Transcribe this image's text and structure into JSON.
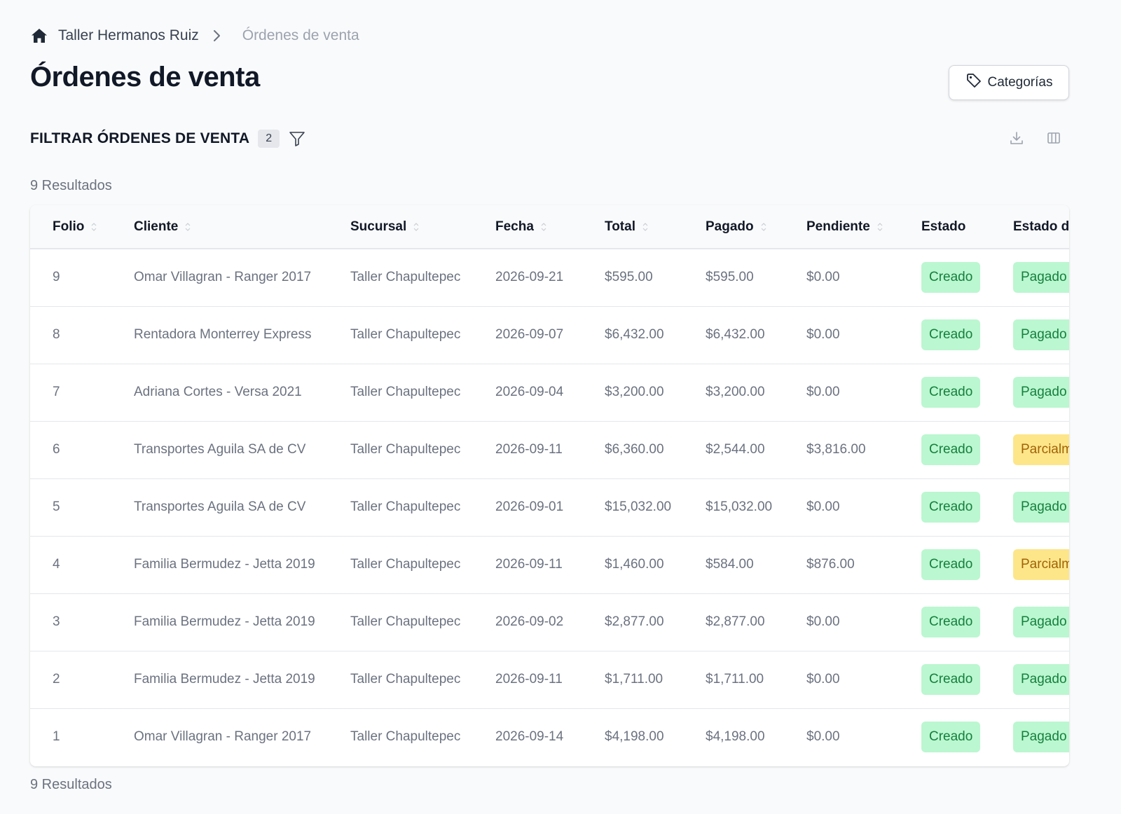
{
  "breadcrumb": {
    "home_icon": "home-icon",
    "items": [
      "Taller Hermanos Ruiz",
      "Órdenes de venta"
    ]
  },
  "page": {
    "title": "Órdenes de venta"
  },
  "actions": {
    "categories_label": "Categorías",
    "categories_icon": "tag-icon"
  },
  "filter": {
    "title": "FILTRAR ÓRDENES DE VENTA",
    "count": "2",
    "icon": "filter-icon"
  },
  "toolbar": {
    "download_icon": "download-icon",
    "columns_icon": "columns-icon"
  },
  "results_label": "9 Resultados",
  "colors": {
    "badge_green_bg": "#bbf7d0",
    "badge_green_text": "#15803d",
    "badge_yellow_bg": "#fde68a",
    "badge_yellow_text": "#a16207"
  },
  "table": {
    "columns": [
      "Folio",
      "Cliente",
      "Sucursal",
      "Fecha",
      "Total",
      "Pagado",
      "Pendiente",
      "Estado",
      "Estado de pago"
    ],
    "rows": [
      {
        "folio": "9",
        "cliente": "Omar Villagran - Ranger 2017",
        "sucursal": "Taller Chapultepec",
        "fecha": "2026-09-21",
        "total": "$595.00",
        "pagado": "$595.00",
        "pendiente": "$0.00",
        "estado": "Creado",
        "estado_pago": "Pagado",
        "pago_tone": "green"
      },
      {
        "folio": "8",
        "cliente": "Rentadora Monterrey Express",
        "sucursal": "Taller Chapultepec",
        "fecha": "2026-09-07",
        "total": "$6,432.00",
        "pagado": "$6,432.00",
        "pendiente": "$0.00",
        "estado": "Creado",
        "estado_pago": "Pagado",
        "pago_tone": "green"
      },
      {
        "folio": "7",
        "cliente": "Adriana Cortes - Versa 2021",
        "sucursal": "Taller Chapultepec",
        "fecha": "2026-09-04",
        "total": "$3,200.00",
        "pagado": "$3,200.00",
        "pendiente": "$0.00",
        "estado": "Creado",
        "estado_pago": "Pagado",
        "pago_tone": "green"
      },
      {
        "folio": "6",
        "cliente": "Transportes Aguila SA de CV",
        "sucursal": "Taller Chapultepec",
        "fecha": "2026-09-11",
        "total": "$6,360.00",
        "pagado": "$2,544.00",
        "pendiente": "$3,816.00",
        "estado": "Creado",
        "estado_pago": "Parcialmente pagado",
        "pago_tone": "yellow"
      },
      {
        "folio": "5",
        "cliente": "Transportes Aguila SA de CV",
        "sucursal": "Taller Chapultepec",
        "fecha": "2026-09-01",
        "total": "$15,032.00",
        "pagado": "$15,032.00",
        "pendiente": "$0.00",
        "estado": "Creado",
        "estado_pago": "Pagado",
        "pago_tone": "green"
      },
      {
        "folio": "4",
        "cliente": "Familia Bermudez - Jetta 2019",
        "sucursal": "Taller Chapultepec",
        "fecha": "2026-09-11",
        "total": "$1,460.00",
        "pagado": "$584.00",
        "pendiente": "$876.00",
        "estado": "Creado",
        "estado_pago": "Parcialmente pagado",
        "pago_tone": "yellow"
      },
      {
        "folio": "3",
        "cliente": "Familia Bermudez - Jetta 2019",
        "sucursal": "Taller Chapultepec",
        "fecha": "2026-09-02",
        "total": "$2,877.00",
        "pagado": "$2,877.00",
        "pendiente": "$0.00",
        "estado": "Creado",
        "estado_pago": "Pagado",
        "pago_tone": "green"
      },
      {
        "folio": "2",
        "cliente": "Familia Bermudez - Jetta 2019",
        "sucursal": "Taller Chapultepec",
        "fecha": "2026-09-11",
        "total": "$1,711.00",
        "pagado": "$1,711.00",
        "pendiente": "$0.00",
        "estado": "Creado",
        "estado_pago": "Pagado",
        "pago_tone": "green"
      },
      {
        "folio": "1",
        "cliente": "Omar Villagran - Ranger 2017",
        "sucursal": "Taller Chapultepec",
        "fecha": "2026-09-14",
        "total": "$4,198.00",
        "pagado": "$4,198.00",
        "pendiente": "$0.00",
        "estado": "Creado",
        "estado_pago": "Pagado",
        "pago_tone": "green"
      }
    ]
  }
}
